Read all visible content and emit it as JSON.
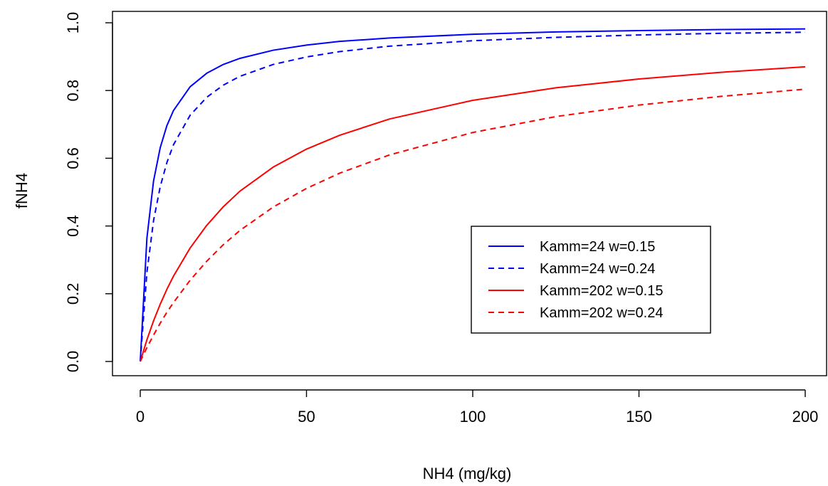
{
  "chart_data": {
    "type": "line",
    "title": "",
    "xlabel": "NH4 (mg/kg)",
    "ylabel": "fNH4",
    "xlim": [
      0,
      200
    ],
    "ylim": [
      0,
      1
    ],
    "xticks": [
      0,
      50,
      100,
      150,
      200
    ],
    "yticks": [
      0,
      0.2,
      0.4,
      0.6,
      0.8,
      1
    ],
    "xtick_labels": [
      "0",
      "50",
      "100",
      "150",
      "200"
    ],
    "ytick_labels": [
      "0.0",
      "0.2",
      "0.4",
      "0.6",
      "0.8",
      "1.0"
    ],
    "grid": false,
    "legend_position": "right",
    "x": [
      0,
      2,
      4,
      6,
      8,
      10,
      15,
      20,
      25,
      30,
      40,
      50,
      60,
      75,
      100,
      125,
      150,
      175,
      200
    ],
    "series": [
      {
        "name": "Kamm=24 w=0.15",
        "color": "#0000ff",
        "dash": "solid",
        "values": [
          0.0,
          0.364,
          0.533,
          0.631,
          0.696,
          0.741,
          0.811,
          0.851,
          0.877,
          0.895,
          0.919,
          0.934,
          0.945,
          0.955,
          0.966,
          0.973,
          0.977,
          0.98,
          0.982
        ]
      },
      {
        "name": "Kamm=24 w=0.24",
        "color": "#0000ff",
        "dash": "dashed",
        "values": [
          0.0,
          0.263,
          0.416,
          0.516,
          0.587,
          0.64,
          0.727,
          0.78,
          0.816,
          0.842,
          0.877,
          0.899,
          0.915,
          0.931,
          0.947,
          0.957,
          0.964,
          0.969,
          0.972
        ]
      },
      {
        "name": "Kamm=202 w=0.15",
        "color": "#ff0000",
        "dash": "solid",
        "values": [
          0.0,
          0.064,
          0.12,
          0.169,
          0.213,
          0.252,
          0.335,
          0.402,
          0.457,
          0.503,
          0.574,
          0.627,
          0.668,
          0.716,
          0.771,
          0.808,
          0.834,
          0.854,
          0.87
        ]
      },
      {
        "name": "Kamm=202 w=0.24",
        "color": "#ff0000",
        "dash": "dashed",
        "values": [
          0.0,
          0.041,
          0.078,
          0.113,
          0.145,
          0.174,
          0.24,
          0.296,
          0.345,
          0.387,
          0.456,
          0.511,
          0.556,
          0.61,
          0.676,
          0.723,
          0.757,
          0.783,
          0.804
        ]
      }
    ]
  }
}
